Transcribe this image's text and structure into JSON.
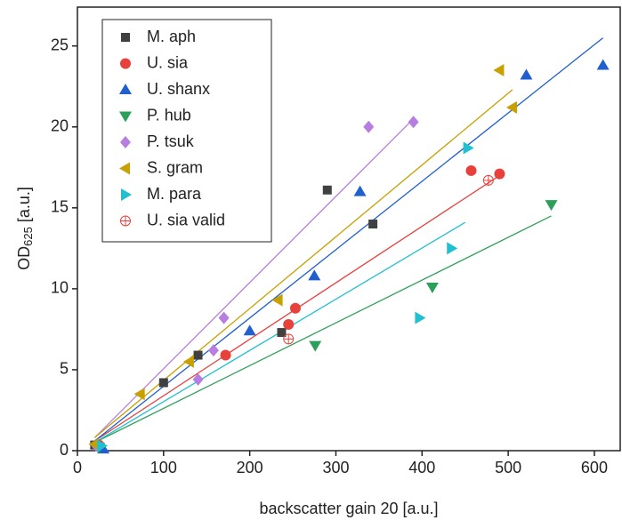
{
  "chart_data": {
    "type": "scatter",
    "xlabel": "backscatter gain 20 [a.u.]",
    "ylabel": {
      "main": "OD",
      "sub": "625",
      "unit": " [a.u.]"
    },
    "xlim": [
      0,
      630
    ],
    "ylim": [
      0,
      27.4
    ],
    "xticks": [
      0,
      100,
      200,
      300,
      400,
      500,
      600
    ],
    "yticks": [
      0,
      5,
      10,
      15,
      20,
      25
    ],
    "legend": "upper-left",
    "series": [
      {
        "name": "M. aph",
        "color": "#404040",
        "marker": "square",
        "x": [
          20,
          100,
          140,
          237,
          290,
          343
        ],
        "values": [
          0.35,
          4.2,
          5.9,
          7.3,
          16.1,
          14.0
        ]
      },
      {
        "name": "U. sia",
        "color": "#e8413c",
        "marker": "circle",
        "x": [
          25,
          172,
          245,
          253,
          457,
          490
        ],
        "values": [
          0.35,
          5.9,
          7.8,
          8.8,
          17.3,
          17.1
        ],
        "fit_x": [
          20,
          490
        ],
        "fit_y": [
          0.6,
          17.0
        ]
      },
      {
        "name": "U. shanx",
        "color": "#1f5fd0",
        "marker": "triangle-up",
        "x": [
          30,
          200,
          275,
          328,
          521,
          610
        ],
        "values": [
          0.1,
          7.4,
          10.8,
          16.0,
          23.2,
          23.8
        ],
        "fit_x": [
          20,
          610
        ],
        "fit_y": [
          0.6,
          25.5
        ]
      },
      {
        "name": "P. hub",
        "color": "#2ca05a",
        "marker": "triangle-down",
        "x": [
          25,
          276,
          412,
          550
        ],
        "values": [
          0.2,
          6.5,
          10.1,
          15.2
        ],
        "fit_x": [
          20,
          550
        ],
        "fit_y": [
          0.5,
          14.5
        ]
      },
      {
        "name": "P. tsuk",
        "color": "#b57ee0",
        "marker": "diamond",
        "x": [
          22,
          140,
          158,
          170,
          338,
          390
        ],
        "values": [
          0.3,
          4.4,
          6.2,
          8.2,
          20.0,
          20.3
        ],
        "fit_x": [
          20,
          390
        ],
        "fit_y": [
          0.8,
          20.5
        ]
      },
      {
        "name": "S. gram",
        "color": "#c8a000",
        "marker": "triangle-left",
        "x": [
          20,
          73,
          130,
          233,
          490,
          505
        ],
        "values": [
          0.4,
          3.5,
          5.5,
          9.3,
          23.5,
          21.2
        ],
        "fit_x": [
          20,
          505
        ],
        "fit_y": [
          0.8,
          22.3
        ]
      },
      {
        "name": "M. para",
        "color": "#20c0d0",
        "marker": "triangle-right",
        "x": [
          28,
          397,
          434,
          453
        ],
        "values": [
          0.3,
          8.2,
          12.5,
          18.7
        ],
        "fit_x": [
          20,
          450
        ],
        "fit_y": [
          0.5,
          14.1
        ]
      },
      {
        "name": "U. sia valid",
        "color": "#e8413c",
        "marker": "circle-cross",
        "x": [
          245,
          477
        ],
        "values": [
          6.9,
          16.7
        ]
      }
    ]
  }
}
